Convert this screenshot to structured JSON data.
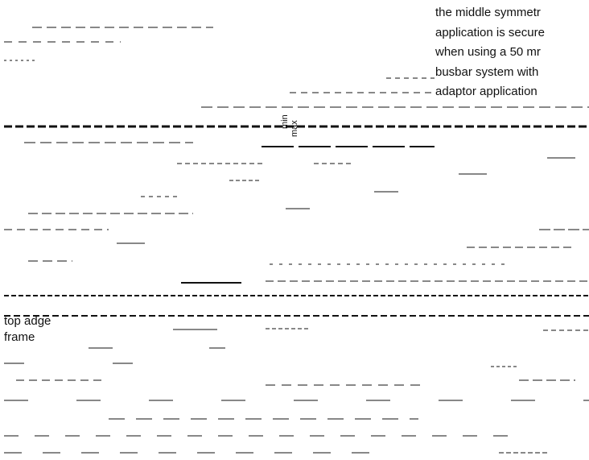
{
  "notes": {
    "lines": [
      "the middle symmetr",
      "application is secure",
      "when using a 50 mr",
      "busbar system with",
      "adaptor application"
    ]
  },
  "dimension": {
    "min": "min",
    "max": "max"
  },
  "labels": {
    "top_edge": "top adge",
    "frame": "frame"
  }
}
